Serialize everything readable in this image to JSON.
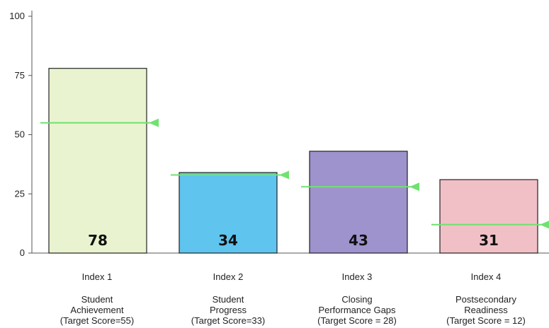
{
  "chart_data": {
    "type": "bar",
    "title": "",
    "xlabel": "",
    "ylabel": "",
    "ylim": [
      0,
      100
    ],
    "yticks": [
      0,
      25,
      50,
      75,
      100
    ],
    "categories": [
      {
        "index_label": "Index 1",
        "name_lines": [
          "Student",
          "Achievement"
        ],
        "target_label": "(Target Score=55)"
      },
      {
        "index_label": "Index 2",
        "name_lines": [
          "Student",
          "Progress"
        ],
        "target_label": "(Target Score=33)"
      },
      {
        "index_label": "Index 3",
        "name_lines": [
          "Closing",
          "Performance Gaps"
        ],
        "target_label": "(Target Score = 28)"
      },
      {
        "index_label": "Index 4",
        "name_lines": [
          "Postsecondary",
          "Readiness"
        ],
        "target_label": "(Target Score = 12)"
      }
    ],
    "values": [
      78,
      34,
      43,
      31
    ],
    "value_labels": [
      "78",
      "34",
      "43",
      "31"
    ],
    "targets": [
      55,
      33,
      28,
      12
    ],
    "bar_colors": [
      "#e9f3cf",
      "#5fc4ee",
      "#9e93cc",
      "#f1c0c6"
    ],
    "target_marker_color": "#6fe26f",
    "grid": false
  }
}
